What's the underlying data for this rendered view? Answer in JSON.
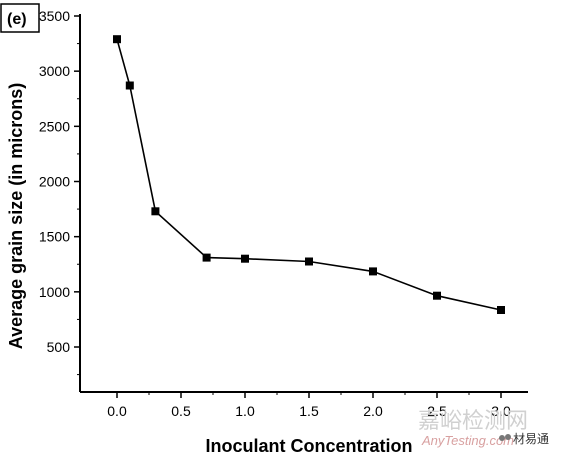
{
  "chart_data": {
    "type": "line",
    "panel_label": "(e)",
    "xlabel": "Inoculant Concentration",
    "ylabel": "Average grain size (in microns)",
    "xlim": [
      -0.2,
      3.2
    ],
    "ylim": [
      200,
      3500
    ],
    "x_ticks": [
      "0.0",
      "0.5",
      "1.0",
      "1.5",
      "2.0",
      "2.5",
      "3.0"
    ],
    "y_ticks": [
      "500",
      "1000",
      "1500",
      "2000",
      "2500",
      "3000",
      "3500"
    ],
    "grid": false,
    "series": [
      {
        "marker": "square",
        "color": "#000000",
        "x": [
          0.0,
          0.1,
          0.3,
          0.7,
          1.0,
          1.5,
          2.0,
          2.5,
          3.0
        ],
        "y": [
          3290,
          2870,
          1730,
          1310,
          1300,
          1275,
          1185,
          965,
          835
        ]
      }
    ]
  },
  "watermark": {
    "cn": "嘉峪检测网",
    "en": "AnyTesting.com",
    "wechat": "材易通"
  }
}
